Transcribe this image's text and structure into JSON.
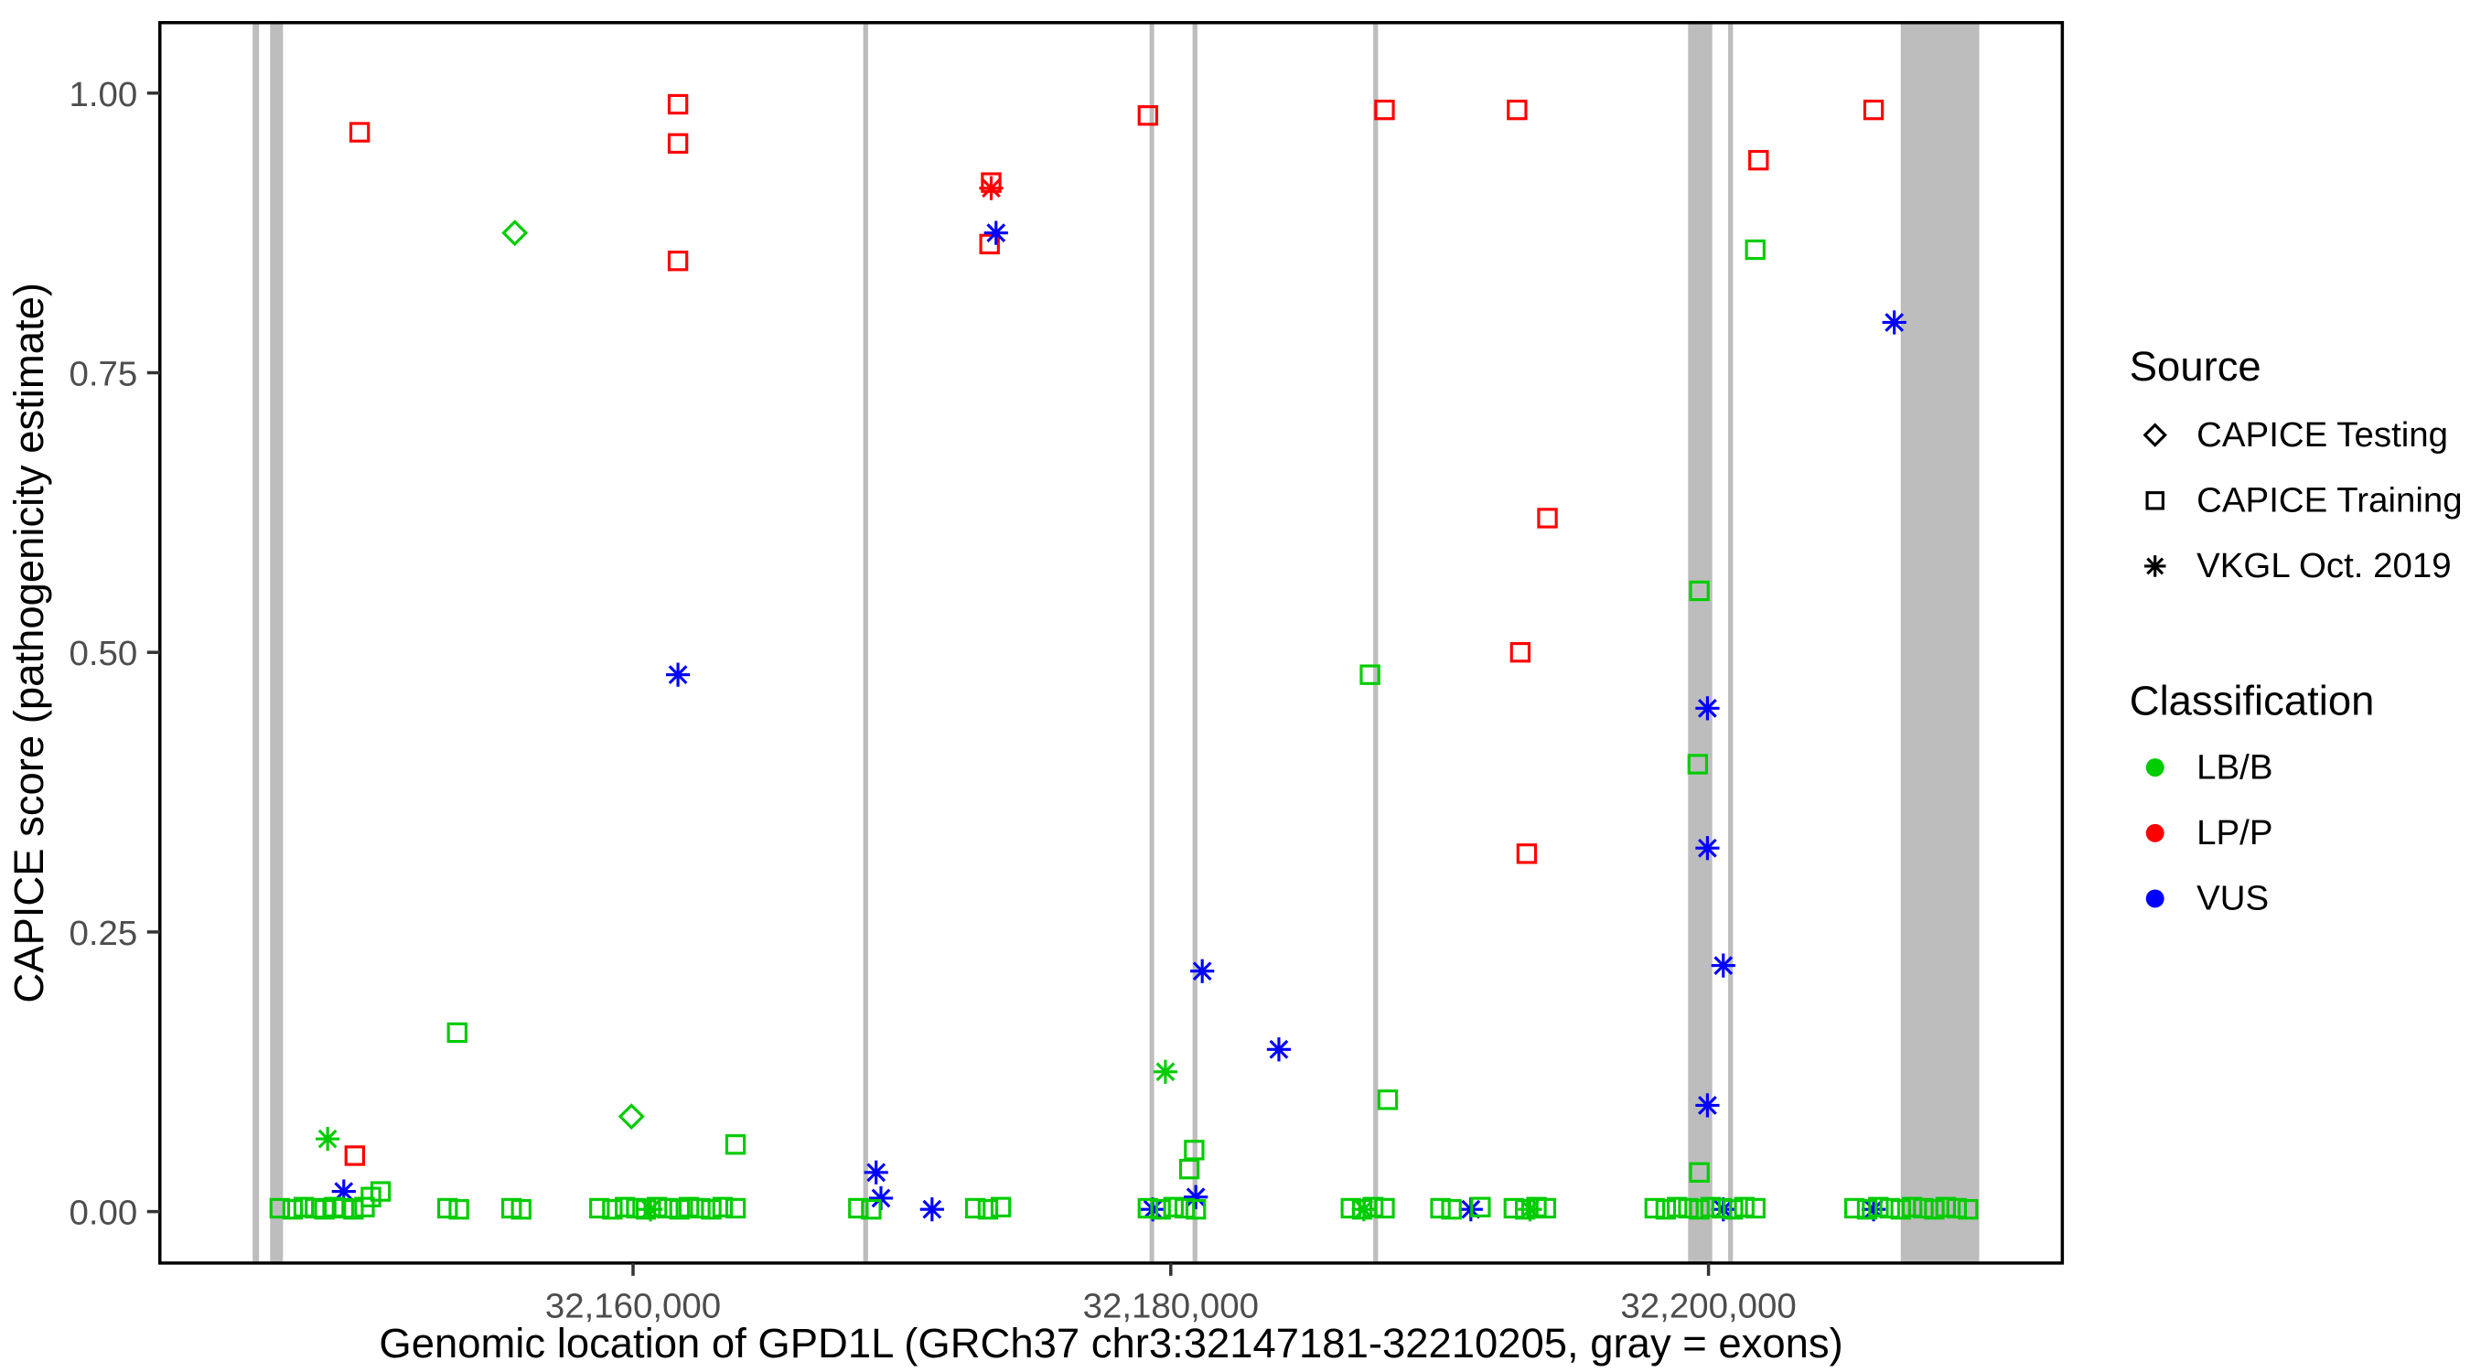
{
  "chart_data": {
    "type": "scatter",
    "title": "",
    "xlabel": "Genomic location of GPD1L (GRCh37 chr3:32147181-32210205, gray = exons)",
    "ylabel": "CAPICE score (pathogenicity estimate)",
    "x_domain": [
      32142400,
      32213160
    ],
    "y_domain": [
      -0.046,
      1.063
    ],
    "x_ticks": [
      {
        "value": 32160000,
        "label": "32,160,000"
      },
      {
        "value": 32180000,
        "label": "32,180,000"
      },
      {
        "value": 32200000,
        "label": "32,200,000"
      }
    ],
    "y_ticks": [
      {
        "value": 0.0,
        "label": "0.00"
      },
      {
        "value": 0.25,
        "label": "0.25"
      },
      {
        "value": 0.5,
        "label": "0.50"
      },
      {
        "value": 0.75,
        "label": "0.75"
      },
      {
        "value": 1.0,
        "label": "1.00"
      }
    ],
    "grid": false,
    "exon_color": "#bdbdbd",
    "exons": [
      [
        32145850,
        32146090
      ],
      [
        32146500,
        32146980
      ],
      [
        32168560,
        32168740
      ],
      [
        32179210,
        32179380
      ],
      [
        32180810,
        32180990
      ],
      [
        32187530,
        32187710
      ],
      [
        32199240,
        32200140
      ],
      [
        32200730,
        32200910
      ],
      [
        32207150,
        32210070
      ]
    ],
    "colors": {
      "LB/B": "#00cc00",
      "LP/P": "#ff0000",
      "VUS": "#0000ff"
    },
    "shapes": {
      "testing": "diamond",
      "training": "square",
      "vkgl": "asterisk"
    },
    "legend": {
      "source": {
        "title": "Source",
        "items": [
          {
            "shape": "diamond",
            "label": "CAPICE Testing"
          },
          {
            "shape": "square",
            "label": "CAPICE Training"
          },
          {
            "shape": "asterisk",
            "label": "VKGL Oct. 2019"
          }
        ]
      },
      "classification": {
        "title": "Classification",
        "items": [
          {
            "color": "#00cc00",
            "label": "LB/B"
          },
          {
            "color": "#ff0000",
            "label": "LP/P"
          },
          {
            "color": "#0000ff",
            "label": "VUS"
          }
        ]
      }
    },
    "points_format": [
      "x",
      "y",
      "source",
      "classification"
    ],
    "points": [
      [
        32149830,
        0.965,
        "training",
        "LP/P"
      ],
      [
        32161670,
        0.99,
        "training",
        "LP/P"
      ],
      [
        32161670,
        0.955,
        "training",
        "LP/P"
      ],
      [
        32161670,
        0.85,
        "training",
        "LP/P"
      ],
      [
        32173320,
        0.92,
        "training",
        "LP/P"
      ],
      [
        32173260,
        0.865,
        "training",
        "LP/P"
      ],
      [
        32179150,
        0.98,
        "training",
        "LP/P"
      ],
      [
        32187950,
        0.985,
        "training",
        "LP/P"
      ],
      [
        32192880,
        0.985,
        "training",
        "LP/P"
      ],
      [
        32194010,
        0.62,
        "training",
        "LP/P"
      ],
      [
        32193000,
        0.5,
        "training",
        "LP/P"
      ],
      [
        32193240,
        0.32,
        "training",
        "LP/P"
      ],
      [
        32201860,
        0.94,
        "training",
        "LP/P"
      ],
      [
        32206140,
        0.985,
        "training",
        "LP/P"
      ],
      [
        32149650,
        0.05,
        "training",
        "LP/P"
      ],
      [
        32173320,
        0.915,
        "vkgl",
        "LP/P"
      ],
      [
        32161670,
        0.48,
        "vkgl",
        "VUS"
      ],
      [
        32173500,
        0.875,
        "vkgl",
        "VUS"
      ],
      [
        32206910,
        0.795,
        "vkgl",
        "VUS"
      ],
      [
        32181170,
        0.215,
        "vkgl",
        "VUS"
      ],
      [
        32184020,
        0.145,
        "vkgl",
        "VUS"
      ],
      [
        32199960,
        0.45,
        "vkgl",
        "VUS"
      ],
      [
        32199960,
        0.325,
        "vkgl",
        "VUS"
      ],
      [
        32200550,
        0.22,
        "vkgl",
        "VUS"
      ],
      [
        32199960,
        0.095,
        "vkgl",
        "VUS"
      ],
      [
        32149240,
        0.018,
        "vkgl",
        "VUS"
      ],
      [
        32169040,
        0.035,
        "vkgl",
        "VUS"
      ],
      [
        32169220,
        0.012,
        "vkgl",
        "VUS"
      ],
      [
        32171120,
        0.002,
        "vkgl",
        "VUS"
      ],
      [
        32179330,
        0.002,
        "vkgl",
        "VUS"
      ],
      [
        32180930,
        0.013,
        "vkgl",
        "VUS"
      ],
      [
        32191160,
        0.002,
        "vkgl",
        "VUS"
      ],
      [
        32200550,
        0.002,
        "vkgl",
        "VUS"
      ],
      [
        32206140,
        0.002,
        "vkgl",
        "VUS"
      ],
      [
        32148640,
        0.065,
        "vkgl",
        "LB/B"
      ],
      [
        32179800,
        0.125,
        "vkgl",
        "LB/B"
      ],
      [
        32160650,
        0.002,
        "vkgl",
        "LB/B"
      ],
      [
        32187180,
        0.002,
        "vkgl",
        "LB/B"
      ],
      [
        32193360,
        0.002,
        "vkgl",
        "LB/B"
      ],
      [
        32155600,
        0.875,
        "testing",
        "LB/B"
      ],
      [
        32159940,
        0.085,
        "testing",
        "LB/B"
      ],
      [
        32153460,
        0.16,
        "training",
        "LB/B"
      ],
      [
        32163810,
        0.06,
        "training",
        "LB/B"
      ],
      [
        32199660,
        0.555,
        "training",
        "LB/B"
      ],
      [
        32199600,
        0.4,
        "training",
        "LB/B"
      ],
      [
        32187410,
        0.48,
        "training",
        "LB/B"
      ],
      [
        32188070,
        0.1,
        "training",
        "LB/B"
      ],
      [
        32180870,
        0.055,
        "training",
        "LB/B"
      ],
      [
        32180690,
        0.038,
        "training",
        "LB/B"
      ],
      [
        32201740,
        0.86,
        "training",
        "LB/B"
      ],
      [
        32199660,
        0.035,
        "training",
        "LB/B"
      ],
      [
        32150250,
        0.013,
        "training",
        "LB/B"
      ],
      [
        32150610,
        0.018,
        "training",
        "LB/B"
      ],
      [
        32146860,
        0.003,
        "training",
        "LB/B"
      ],
      [
        32147340,
        0.002,
        "training",
        "LB/B"
      ],
      [
        32147750,
        0.004,
        "training",
        "LB/B"
      ],
      [
        32148170,
        0.003,
        "training",
        "LB/B"
      ],
      [
        32148520,
        0.002,
        "training",
        "LB/B"
      ],
      [
        32148880,
        0.004,
        "training",
        "LB/B"
      ],
      [
        32149240,
        0.003,
        "training",
        "LB/B"
      ],
      [
        32149600,
        0.002,
        "training",
        "LB/B"
      ],
      [
        32150010,
        0.004,
        "training",
        "LB/B"
      ],
      [
        32153100,
        0.003,
        "training",
        "LB/B"
      ],
      [
        32153520,
        0.002,
        "training",
        "LB/B"
      ],
      [
        32155480,
        0.003,
        "training",
        "LB/B"
      ],
      [
        32155840,
        0.002,
        "training",
        "LB/B"
      ],
      [
        32158750,
        0.003,
        "training",
        "LB/B"
      ],
      [
        32159230,
        0.002,
        "training",
        "LB/B"
      ],
      [
        32159700,
        0.004,
        "training",
        "LB/B"
      ],
      [
        32160120,
        0.003,
        "training",
        "LB/B"
      ],
      [
        32160480,
        0.002,
        "training",
        "LB/B"
      ],
      [
        32160890,
        0.004,
        "training",
        "LB/B"
      ],
      [
        32161310,
        0.003,
        "training",
        "LB/B"
      ],
      [
        32161730,
        0.002,
        "training",
        "LB/B"
      ],
      [
        32162080,
        0.004,
        "training",
        "LB/B"
      ],
      [
        32162500,
        0.003,
        "training",
        "LB/B"
      ],
      [
        32162910,
        0.002,
        "training",
        "LB/B"
      ],
      [
        32163330,
        0.004,
        "training",
        "LB/B"
      ],
      [
        32163810,
        0.003,
        "training",
        "LB/B"
      ],
      [
        32168380,
        0.003,
        "training",
        "LB/B"
      ],
      [
        32168860,
        0.002,
        "training",
        "LB/B"
      ],
      [
        32172730,
        0.003,
        "training",
        "LB/B"
      ],
      [
        32173200,
        0.002,
        "training",
        "LB/B"
      ],
      [
        32173680,
        0.004,
        "training",
        "LB/B"
      ],
      [
        32179150,
        0.003,
        "training",
        "LB/B"
      ],
      [
        32179620,
        0.002,
        "training",
        "LB/B"
      ],
      [
        32180100,
        0.004,
        "training",
        "LB/B"
      ],
      [
        32180520,
        0.003,
        "training",
        "LB/B"
      ],
      [
        32180930,
        0.002,
        "training",
        "LB/B"
      ],
      [
        32186700,
        0.003,
        "training",
        "LB/B"
      ],
      [
        32187120,
        0.002,
        "training",
        "LB/B"
      ],
      [
        32187530,
        0.004,
        "training",
        "LB/B"
      ],
      [
        32187950,
        0.003,
        "training",
        "LB/B"
      ],
      [
        32190030,
        0.003,
        "training",
        "LB/B"
      ],
      [
        32190440,
        0.002,
        "training",
        "LB/B"
      ],
      [
        32191520,
        0.004,
        "training",
        "LB/B"
      ],
      [
        32192760,
        0.003,
        "training",
        "LB/B"
      ],
      [
        32193180,
        0.002,
        "training",
        "LB/B"
      ],
      [
        32193600,
        0.004,
        "training",
        "LB/B"
      ],
      [
        32193950,
        0.003,
        "training",
        "LB/B"
      ],
      [
        32198000,
        0.003,
        "training",
        "LB/B"
      ],
      [
        32198410,
        0.002,
        "training",
        "LB/B"
      ],
      [
        32198830,
        0.004,
        "training",
        "LB/B"
      ],
      [
        32199250,
        0.003,
        "training",
        "LB/B"
      ],
      [
        32199660,
        0.002,
        "training",
        "LB/B"
      ],
      [
        32200080,
        0.004,
        "training",
        "LB/B"
      ],
      [
        32200490,
        0.003,
        "training",
        "LB/B"
      ],
      [
        32200910,
        0.002,
        "training",
        "LB/B"
      ],
      [
        32201330,
        0.004,
        "training",
        "LB/B"
      ],
      [
        32201740,
        0.003,
        "training",
        "LB/B"
      ],
      [
        32205430,
        0.003,
        "training",
        "LB/B"
      ],
      [
        32205900,
        0.002,
        "training",
        "LB/B"
      ],
      [
        32206320,
        0.004,
        "training",
        "LB/B"
      ],
      [
        32206740,
        0.003,
        "training",
        "LB/B"
      ],
      [
        32207150,
        0.002,
        "training",
        "LB/B"
      ],
      [
        32207570,
        0.004,
        "training",
        "LB/B"
      ],
      [
        32207990,
        0.003,
        "training",
        "LB/B"
      ],
      [
        32208400,
        0.002,
        "training",
        "LB/B"
      ],
      [
        32208820,
        0.004,
        "training",
        "LB/B"
      ],
      [
        32209230,
        0.003,
        "training",
        "LB/B"
      ],
      [
        32209650,
        0.002,
        "training",
        "LB/B"
      ]
    ]
  }
}
